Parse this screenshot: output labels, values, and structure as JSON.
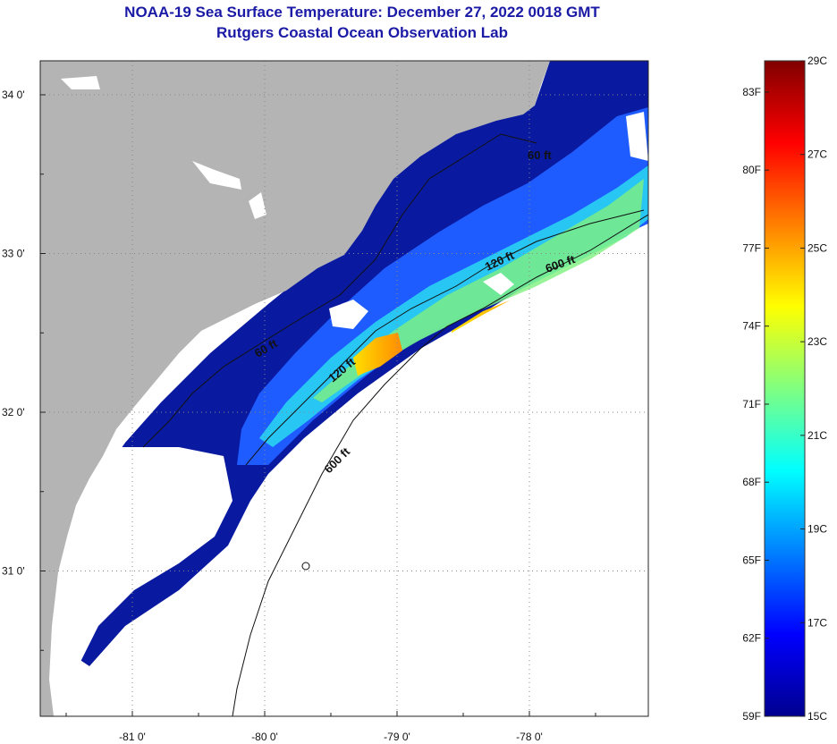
{
  "title": {
    "line1": "NOAA-19 Sea Surface Temperature:  December 27, 2022 0018 GMT",
    "line2": "Rutgers Coastal Ocean Observation Lab"
  },
  "map": {
    "longitude_ticks": [
      {
        "value": -81,
        "label": "-81 0'"
      },
      {
        "value": -80,
        "label": "-80 0'"
      },
      {
        "value": -79,
        "label": "-79 0'"
      },
      {
        "value": -78,
        "label": "-78 0'"
      }
    ],
    "latitude_ticks": [
      {
        "value": 34,
        "label": "34 0'"
      },
      {
        "value": 33,
        "label": "33 0'"
      },
      {
        "value": 32,
        "label": "32 0'"
      },
      {
        "value": 31,
        "label": "31 0'"
      }
    ],
    "contour_labels": [
      {
        "id": "a",
        "text": "60 ft"
      },
      {
        "id": "b",
        "text": "120 ft"
      },
      {
        "id": "c",
        "text": "600 ft"
      },
      {
        "id": "d",
        "text": "60 ft"
      },
      {
        "id": "e",
        "text": "120 ft"
      },
      {
        "id": "f",
        "text": "600 ft"
      }
    ],
    "colors": {
      "land": "#b4b4b4",
      "cloud": "#ffffff",
      "cold_water": "#0a1aa0"
    }
  },
  "colorbar": {
    "celsius_labels": [
      "29C",
      "27C",
      "25C",
      "23C",
      "21C",
      "19C",
      "17C",
      "15C"
    ],
    "fahrenheit_labels": [
      "83F",
      "80F",
      "77F",
      "74F",
      "71F",
      "68F",
      "65F",
      "62F",
      "59F"
    ],
    "colors": [
      "#00008f",
      "#0000ff",
      "#0080ff",
      "#00ffff",
      "#80ff80",
      "#ffff00",
      "#ff8000",
      "#ff0000",
      "#800000"
    ]
  }
}
